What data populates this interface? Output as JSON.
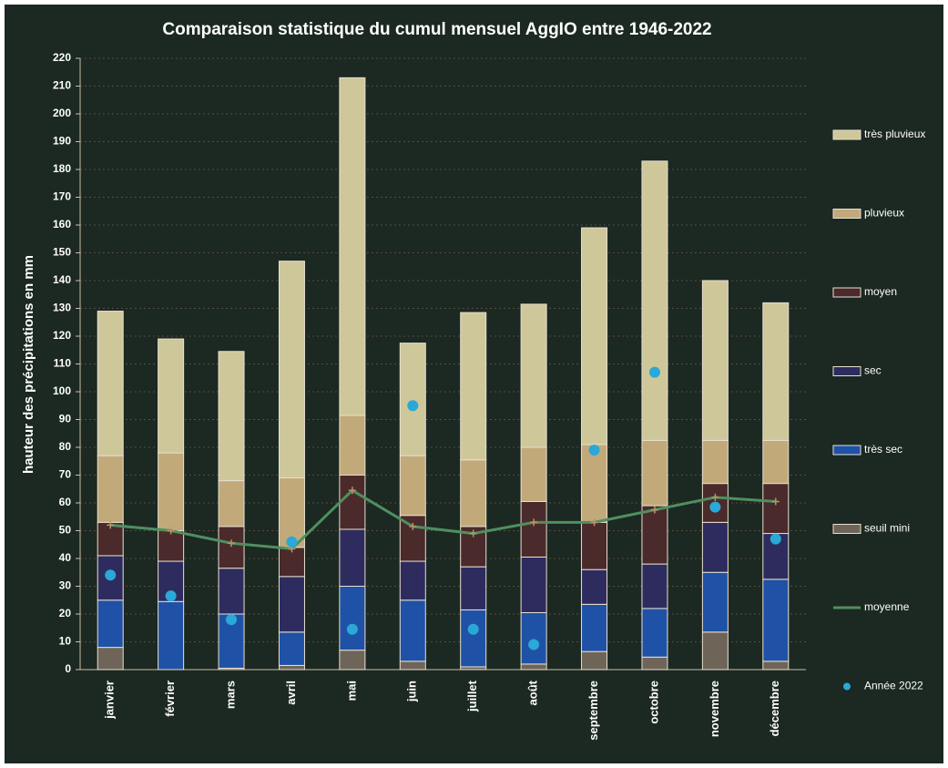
{
  "chart_data": {
    "type": "bar",
    "stacked": true,
    "title": "Comparaison statistique du cumul mensuel AggIO entre 1946-2022",
    "ylabel": "hauteur des précipitations en mm",
    "categories": [
      "janvier",
      "février",
      "mars",
      "avril",
      "mai",
      "juin",
      "juillet",
      "août",
      "septembre",
      "octobre",
      "novembre",
      "décembre"
    ],
    "series": [
      {
        "name": "seuil mini",
        "color": "#6e6458",
        "values": [
          8,
          0,
          0.5,
          1.5,
          7,
          3,
          1,
          2,
          6.5,
          4.5,
          13.5,
          3
        ]
      },
      {
        "name": "très sec",
        "color": "#1f52a6",
        "values": [
          17,
          24.5,
          19.5,
          12,
          23,
          22,
          20.5,
          18.5,
          17,
          17.5,
          21.5,
          29.5
        ]
      },
      {
        "name": "sec",
        "color": "#2e2c5e",
        "values": [
          16,
          14.5,
          16.5,
          20,
          20.5,
          14,
          15.5,
          20,
          12.5,
          16,
          18,
          16.5
        ]
      },
      {
        "name": "moyen",
        "color": "#4a2a2a",
        "values": [
          12,
          11,
          15,
          10.5,
          19.5,
          16.5,
          14.5,
          20,
          17,
          21,
          14,
          18
        ]
      },
      {
        "name": "pluvieux",
        "color": "#c2a97a",
        "values": [
          24,
          28,
          16.5,
          25,
          21.5,
          21.5,
          24,
          19.5,
          28,
          23.5,
          15.5,
          15.5
        ]
      },
      {
        "name": "très pluvieux",
        "color": "#cdc79a",
        "values": [
          52,
          41,
          46.5,
          78,
          121.5,
          40.5,
          53,
          51.5,
          78,
          100.5,
          57.5,
          49.5
        ]
      },
      {
        "name": "moyenne",
        "type": "line",
        "color": "#4f8f60",
        "values": [
          52,
          50,
          45.5,
          43.5,
          64.5,
          51.5,
          49,
          53,
          53,
          57.5,
          62,
          60.5
        ]
      },
      {
        "name": "Année 2022",
        "type": "scatter",
        "color": "#2aa8d8",
        "values": [
          34,
          26.5,
          18,
          46,
          14.5,
          95,
          14.5,
          9,
          79,
          107,
          58.5,
          47
        ]
      }
    ],
    "ylim": [
      0,
      220
    ],
    "yticks": [
      0,
      10,
      20,
      30,
      40,
      50,
      60,
      70,
      80,
      90,
      100,
      110,
      120,
      130,
      140,
      150,
      160,
      170,
      180,
      190,
      200,
      210,
      220
    ],
    "grid": true,
    "legend": "right"
  }
}
